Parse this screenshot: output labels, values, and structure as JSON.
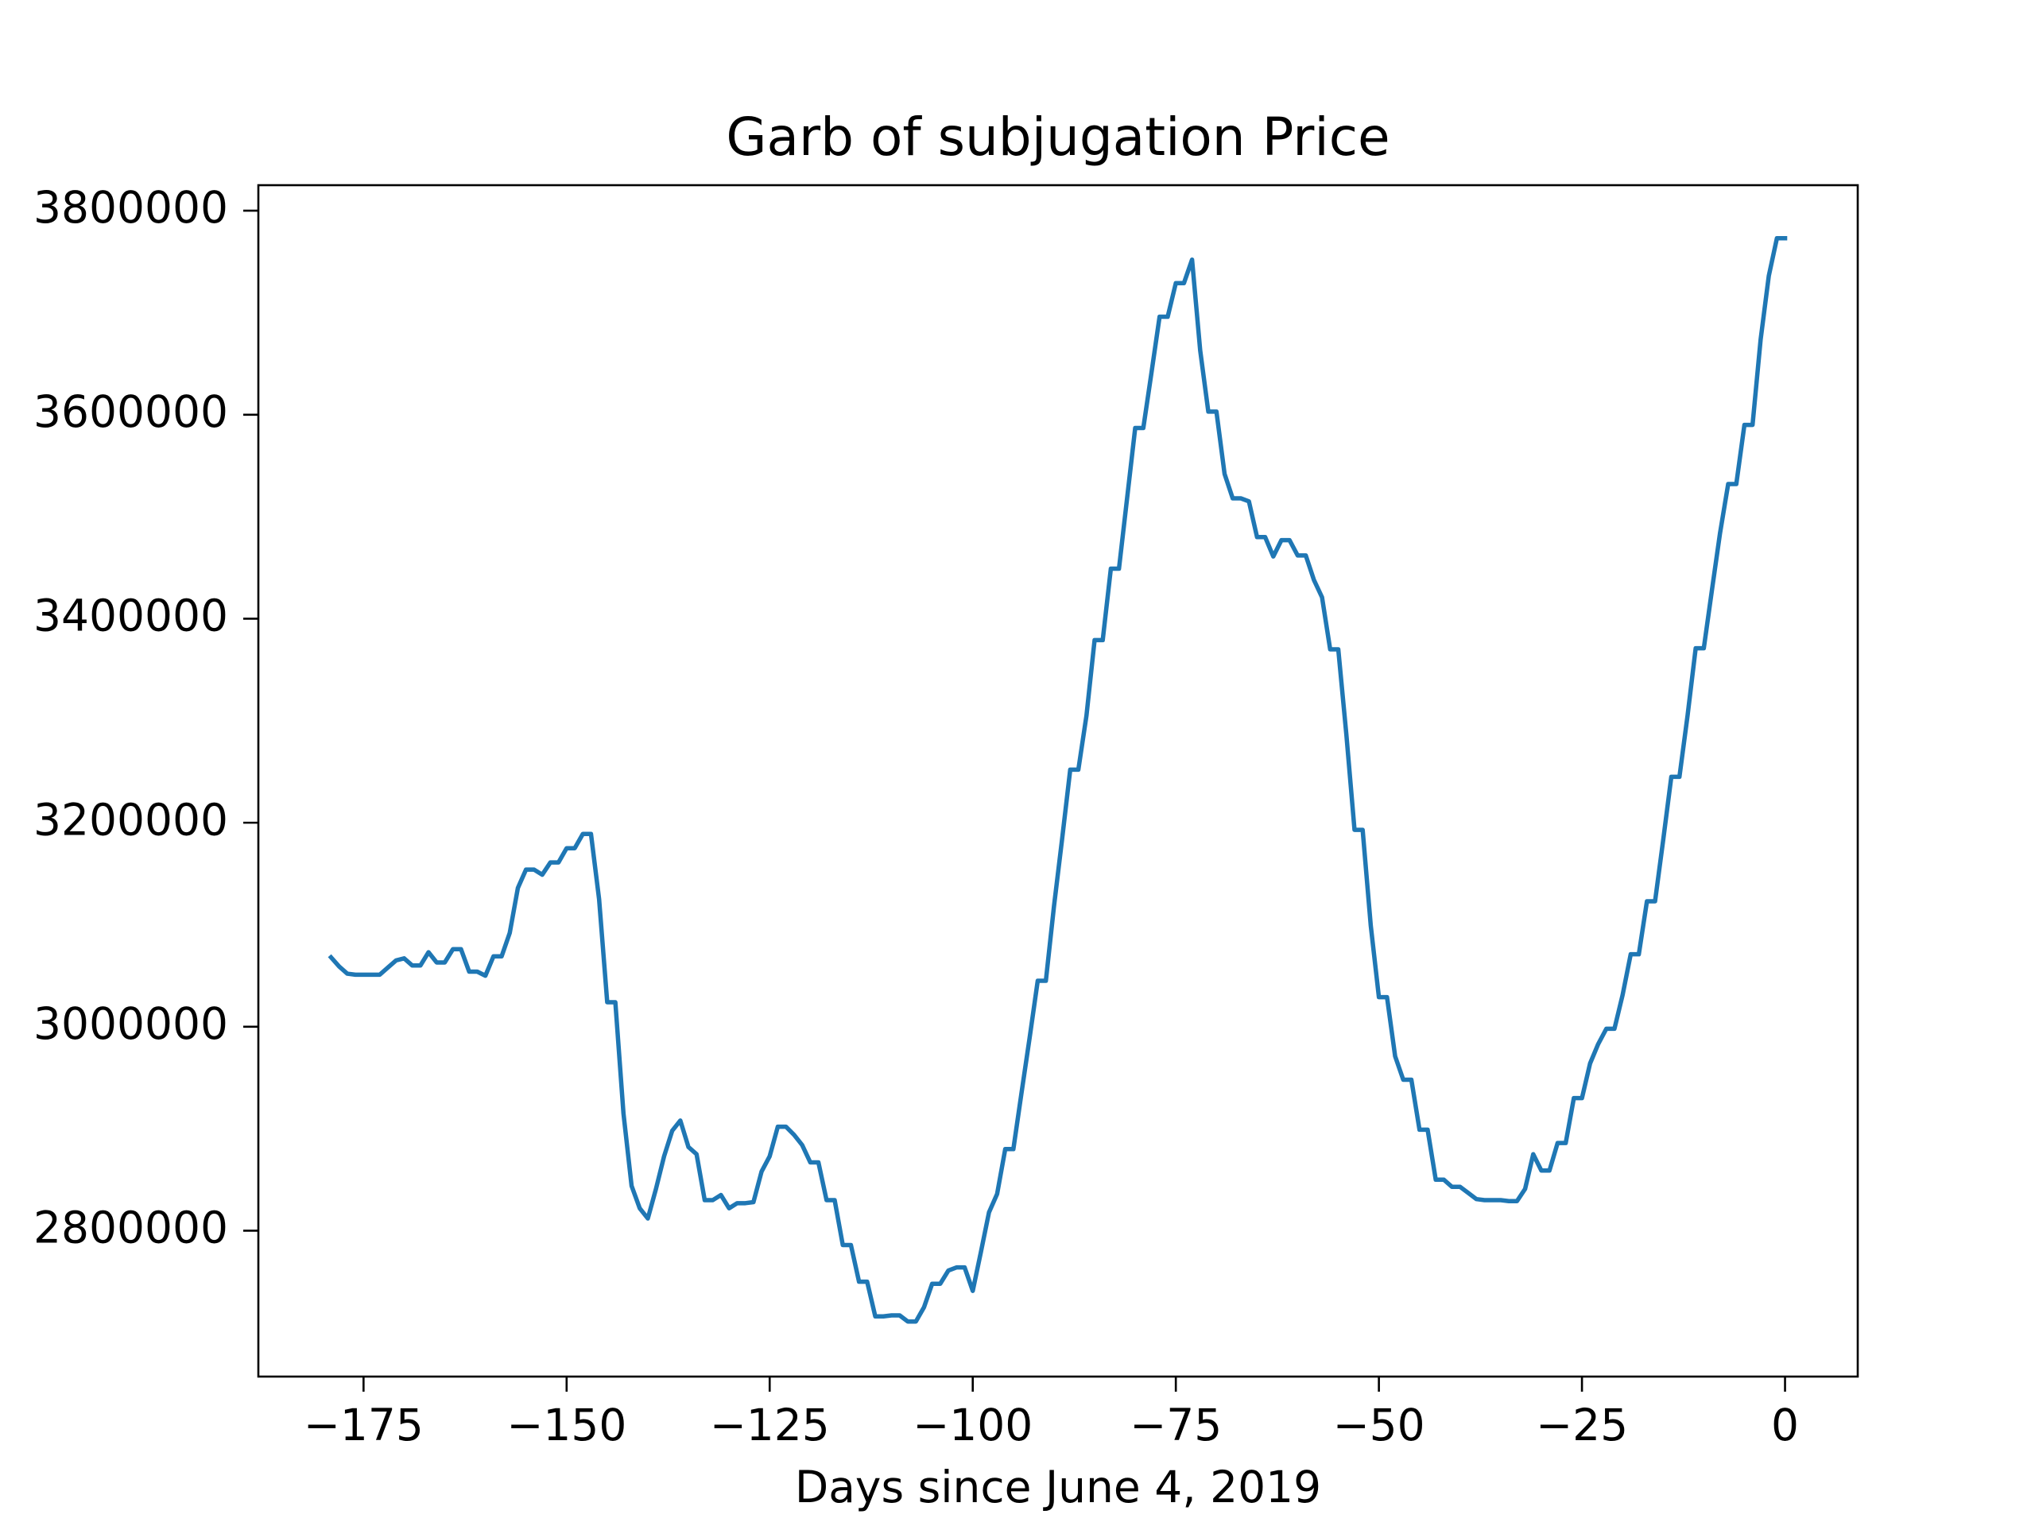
{
  "chart_data": {
    "type": "line",
    "title": "Garb of subjugation Price",
    "x_label": "Days since June 4, 2019",
    "x": [
      -179,
      -178,
      -177,
      -176,
      -175,
      -174,
      -173,
      -172,
      -171,
      -170,
      -169,
      -168,
      -167,
      -166,
      -165,
      -164,
      -163,
      -162,
      -161,
      -160,
      -159,
      -158,
      -157,
      -156,
      -155,
      -154,
      -153,
      -152,
      -151,
      -150,
      -149,
      -148,
      -147,
      -146,
      -145,
      -144,
      -143,
      -142,
      -141,
      -140,
      -139,
      -138,
      -137,
      -136,
      -135,
      -134,
      -133,
      -132,
      -131,
      -130,
      -129,
      -128,
      -127,
      -126,
      -125,
      -124,
      -123,
      -122,
      -121,
      -120,
      -119,
      -118,
      -117,
      -116,
      -115,
      -114,
      -113,
      -112,
      -111,
      -110,
      -109,
      -108,
      -107,
      -106,
      -105,
      -104,
      -103,
      -102,
      -101,
      -100,
      -99,
      -98,
      -97,
      -96,
      -95,
      -94,
      -93,
      -92,
      -91,
      -90,
      -89,
      -88,
      -87,
      -86,
      -85,
      -84,
      -83,
      -82,
      -81,
      -80,
      -79,
      -78,
      -77,
      -76,
      -75,
      -74,
      -73,
      -72,
      -71,
      -70,
      -69,
      -68,
      -67,
      -66,
      -65,
      -64,
      -63,
      -62,
      -61,
      -60,
      -59,
      -58,
      -57,
      -56,
      -55,
      -54,
      -53,
      -52,
      -51,
      -50,
      -49,
      -48,
      -47,
      -46,
      -45,
      -44,
      -43,
      -42,
      -41,
      -40,
      -39,
      -38,
      -37,
      -36,
      -35,
      -34,
      -33,
      -32,
      -31,
      -30,
      -29,
      -28,
      -27,
      -26,
      -25,
      -24,
      -23,
      -22,
      -21,
      -20,
      -19,
      -18,
      -17,
      -16,
      -15,
      -14,
      -13,
      -12,
      -11,
      -10,
      -9,
      -8,
      -7,
      -6,
      -5,
      -4,
      -3,
      -2,
      -1,
      0
    ],
    "series": [
      {
        "color": "#1f77b4",
        "values": [
          3068000,
          3059000,
          3052000,
          3051000,
          3051000,
          3051000,
          3051000,
          3058000,
          3065000,
          3067000,
          3060000,
          3060000,
          3073000,
          3063000,
          3063000,
          3076000,
          3076000,
          3054000,
          3054000,
          3050000,
          3069000,
          3069000,
          3092000,
          3136000,
          3154000,
          3154000,
          3149000,
          3161000,
          3161000,
          3175000,
          3175000,
          3189000,
          3189000,
          3125000,
          3024000,
          3024000,
          2915000,
          2844000,
          2822000,
          2812000,
          2841000,
          2873000,
          2898000,
          2908000,
          2882000,
          2875000,
          2830000,
          2830000,
          2835000,
          2822000,
          2827000,
          2827000,
          2828000,
          2858000,
          2873000,
          2902000,
          2902000,
          2894000,
          2884000,
          2867000,
          2867000,
          2830000,
          2830000,
          2786000,
          2786000,
          2750000,
          2750000,
          2716000,
          2716000,
          2717000,
          2717000,
          2711000,
          2711000,
          2725000,
          2748000,
          2748000,
          2761000,
          2764000,
          2764000,
          2741000,
          2779000,
          2818000,
          2836000,
          2880000,
          2880000,
          2935000,
          2989000,
          3045000,
          3045000,
          3118000,
          3184000,
          3252000,
          3252000,
          3305000,
          3379000,
          3379000,
          3449000,
          3449000,
          3518000,
          3587000,
          3587000,
          3641000,
          3696000,
          3696000,
          3729000,
          3729000,
          3752000,
          3663000,
          3603000,
          3603000,
          3542000,
          3518000,
          3518000,
          3515000,
          3480000,
          3480000,
          3461000,
          3477000,
          3477000,
          3462000,
          3462000,
          3438000,
          3421000,
          3370000,
          3370000,
          3286000,
          3193000,
          3193000,
          3099000,
          3029000,
          3029000,
          2971000,
          2948000,
          2948000,
          2899000,
          2899000,
          2850000,
          2850000,
          2843000,
          2843000,
          2837000,
          2831000,
          2830000,
          2830000,
          2830000,
          2829000,
          2829000,
          2841000,
          2875000,
          2859000,
          2859000,
          2886000,
          2886000,
          2930000,
          2930000,
          2964000,
          2983000,
          2998000,
          2998000,
          3031000,
          3071000,
          3071000,
          3123000,
          3123000,
          3183000,
          3245000,
          3245000,
          3305000,
          3371000,
          3371000,
          3428000,
          3484000,
          3532000,
          3532000,
          3590000,
          3590000,
          3674000,
          3736000,
          3773000,
          3773000
        ]
      }
    ],
    "xlim": [
      -187.95,
      8.95
    ],
    "ylim": [
      2657000,
      3825000
    ],
    "xticks": [
      {
        "value": -175,
        "label": "−175"
      },
      {
        "value": -150,
        "label": "−150"
      },
      {
        "value": -125,
        "label": "−125"
      },
      {
        "value": -100,
        "label": "−100"
      },
      {
        "value": -75,
        "label": "−75"
      },
      {
        "value": -50,
        "label": "−50"
      },
      {
        "value": -25,
        "label": "−25"
      },
      0
    ],
    "yticks": [
      2800000,
      3000000,
      3200000,
      3400000,
      3600000,
      3800000
    ]
  }
}
